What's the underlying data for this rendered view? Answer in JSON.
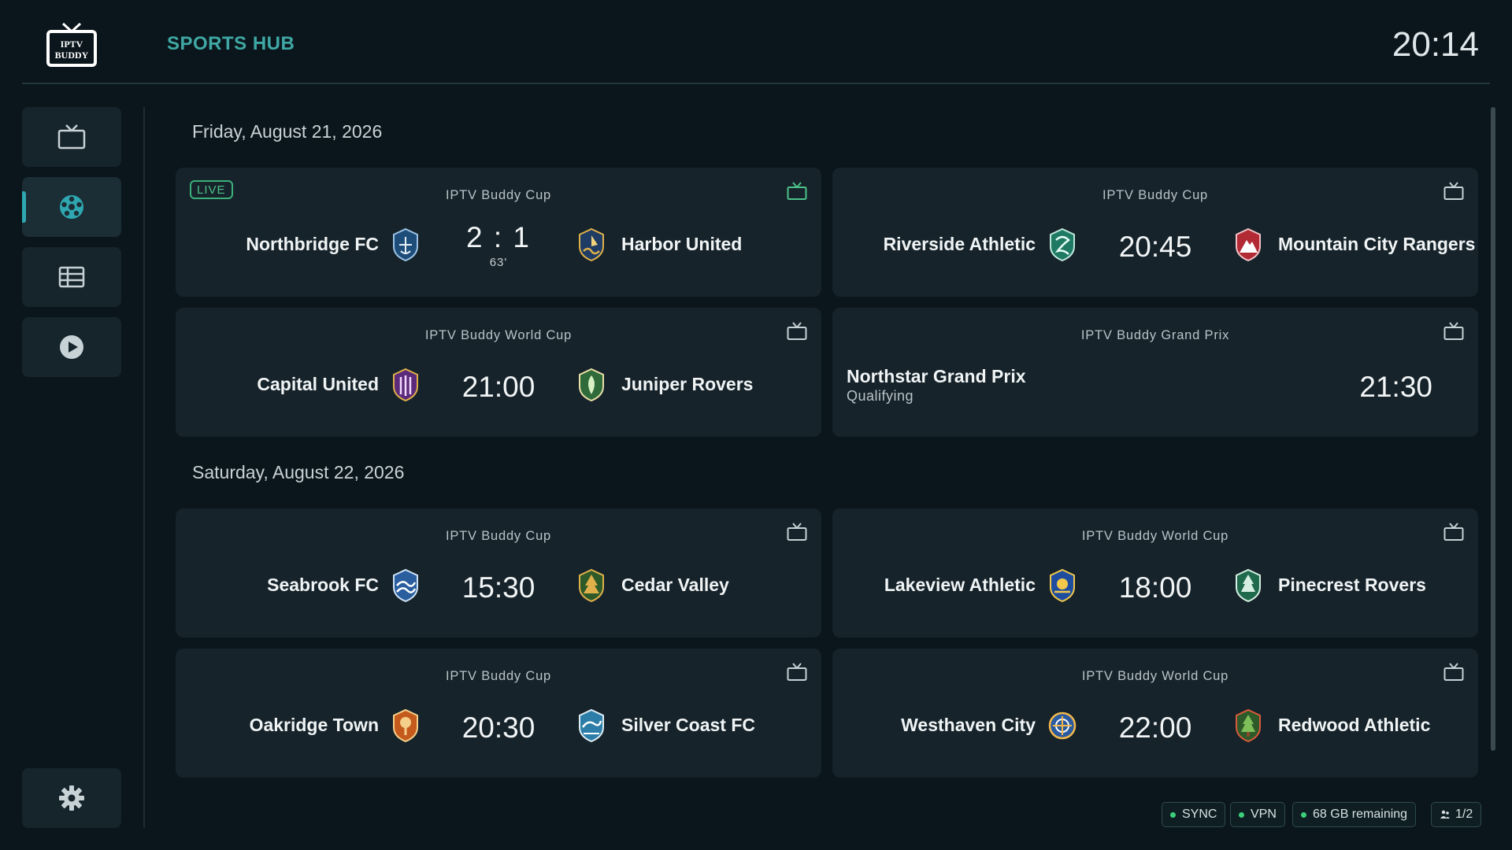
{
  "header": {
    "logo_text_1": "IPTV",
    "logo_text_2": "BUDDY",
    "title": "SPORTS HUB",
    "clock": "20:14"
  },
  "sidebar": {
    "items": [
      {
        "name": "tv",
        "icon": "tv-icon"
      },
      {
        "name": "sports",
        "icon": "soccer-ball-icon",
        "active": true
      },
      {
        "name": "guide",
        "icon": "grid-icon"
      },
      {
        "name": "vod",
        "icon": "play-icon"
      }
    ],
    "settings_icon": "gear-icon"
  },
  "days": [
    {
      "date": "Friday, August 21, 2026",
      "events": [
        {
          "competition": "IPTV Buddy Cup",
          "live": "LIVE",
          "home": "Northbridge FC",
          "away": "Harbor United",
          "score": "2 : 1",
          "minute": "63'"
        },
        {
          "competition": "IPTV Buddy Cup",
          "home": "Riverside Athletic",
          "away": "Mountain City Rangers",
          "time": "20:45"
        },
        {
          "competition": "IPTV Buddy World Cup",
          "home": "Capital United",
          "away": "Juniper Rovers",
          "time": "21:00"
        },
        {
          "competition": "IPTV Buddy Grand Prix",
          "event": "Northstar Grand Prix",
          "session": "Qualifying",
          "time": "21:30"
        }
      ]
    },
    {
      "date": "Saturday, August 22, 2026",
      "events": [
        {
          "competition": "IPTV Buddy Cup",
          "home": "Seabrook FC",
          "away": "Cedar Valley",
          "time": "15:30"
        },
        {
          "competition": "IPTV Buddy World Cup",
          "home": "Lakeview Athletic",
          "away": "Pinecrest Rovers",
          "time": "18:00"
        },
        {
          "competition": "IPTV Buddy Cup",
          "home": "Oakridge Town",
          "away": "Silver Coast FC",
          "time": "20:30"
        },
        {
          "competition": "IPTV Buddy World Cup",
          "home": "Westhaven City",
          "away": "Redwood Athletic",
          "time": "22:00"
        }
      ]
    }
  ],
  "status": {
    "sync": "SYNC",
    "vpn": "VPN",
    "storage": "68 GB remaining",
    "users": "1/2"
  },
  "colors": {
    "accent": "#3fa8a4",
    "live": "#4cc38a",
    "card": "#16232a",
    "background": "#0b161c"
  }
}
